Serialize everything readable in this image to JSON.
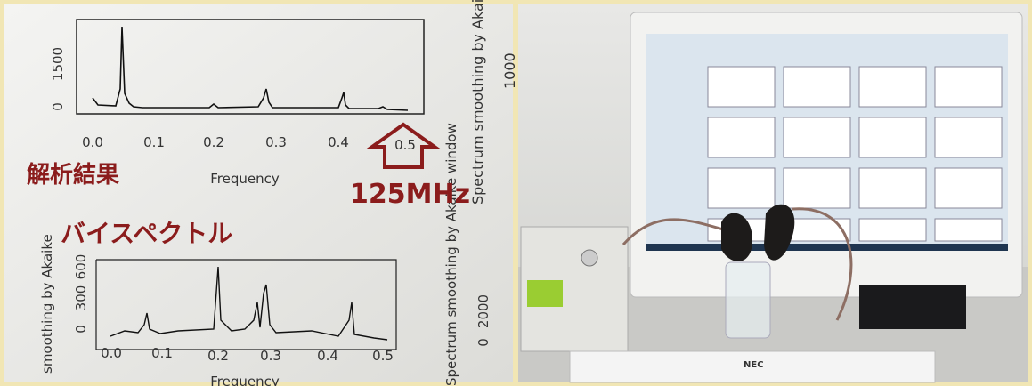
{
  "left_photo": {
    "top_plot": {
      "x_ticks": [
        "0.0",
        "0.1",
        "0.2",
        "0.3",
        "0.4",
        "0.5"
      ],
      "y_ticks": [
        "0",
        "1500"
      ],
      "x_label": "Frequency",
      "side_caption": "Spectrum smoothing by Akaike",
      "side_tick": "1000"
    },
    "bottom_plot": {
      "x_ticks": [
        "0.0",
        "0.1",
        "0.2",
        "0.3",
        "0.4",
        "0.5"
      ],
      "y_ticks": [
        "0",
        "300",
        "600"
      ],
      "x_label": "Frequency",
      "side_caption": "Spectrum smoothing by Akaike window",
      "left_caption": "smoothing by Akaike",
      "side_ticks": [
        "0",
        "2000"
      ]
    },
    "annotations": {
      "analysis_result": "解析結果",
      "bispectrum": "バイスペクトル",
      "frequency_mark": "125MHz"
    }
  },
  "right_photo": {
    "keyboard_brand": "NEC"
  }
}
